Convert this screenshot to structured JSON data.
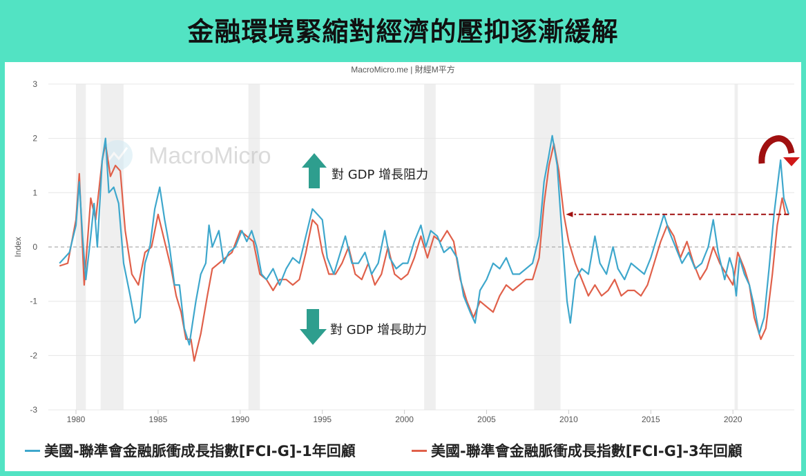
{
  "title": "金融環境緊縮對經濟的壓抑逐漸緩解",
  "source": "MacroMicro.me | 財經M平方",
  "watermark": "MacroMicro",
  "annotations": {
    "up": "對 GDP 增長阻力",
    "down": "對 GDP 增長助力"
  },
  "colors": {
    "background": "#52e3c3",
    "series1": "#3ea7cc",
    "series2": "#e0604a",
    "arrow": "#2e9e8e",
    "highlight": "#a01010"
  },
  "chart_data": {
    "type": "line",
    "ylabel": "Index",
    "ylim": [
      -3,
      3
    ],
    "xlim": [
      1978.5,
      2023.9
    ],
    "yticks": [
      "3",
      "2",
      "1",
      "0",
      "-1",
      "-2",
      "-3"
    ],
    "xticks": [
      "1980",
      "1985",
      "1990",
      "1995",
      "2000",
      "2005",
      "2010",
      "2015",
      "2020"
    ],
    "grid": true,
    "legend": "bottom",
    "recessions": [
      [
        1980.0,
        1980.6
      ],
      [
        1981.5,
        1982.9
      ],
      [
        1990.5,
        1991.2
      ],
      [
        2001.2,
        2001.9
      ],
      [
        2007.9,
        2009.5
      ],
      [
        2020.1,
        2020.3
      ]
    ],
    "reference_level": 0.6,
    "series": [
      {
        "name": "美國-聯準會金融脈衝成長指數[FCI-G]-1年回顧",
        "color": "#3ea7cc",
        "points": [
          [
            1979.0,
            -0.3
          ],
          [
            1979.3,
            -0.2
          ],
          [
            1979.6,
            -0.1
          ],
          [
            1980.0,
            0.4
          ],
          [
            1980.2,
            1.2
          ],
          [
            1980.4,
            0.2
          ],
          [
            1980.6,
            -0.6
          ],
          [
            1980.9,
            0.2
          ],
          [
            1981.1,
            0.8
          ],
          [
            1981.3,
            0.0
          ],
          [
            1981.6,
            1.6
          ],
          [
            1981.8,
            2.0
          ],
          [
            1982.0,
            1.0
          ],
          [
            1982.3,
            1.1
          ],
          [
            1982.6,
            0.8
          ],
          [
            1982.9,
            -0.3
          ],
          [
            1983.3,
            -0.9
          ],
          [
            1983.6,
            -1.4
          ],
          [
            1983.9,
            -1.3
          ],
          [
            1984.2,
            -0.3
          ],
          [
            1984.5,
            0.0
          ],
          [
            1984.8,
            0.7
          ],
          [
            1985.1,
            1.1
          ],
          [
            1985.4,
            0.5
          ],
          [
            1985.7,
            0.0
          ],
          [
            1986.0,
            -0.7
          ],
          [
            1986.3,
            -0.7
          ],
          [
            1986.6,
            -1.5
          ],
          [
            1986.9,
            -1.8
          ],
          [
            1987.1,
            -1.4
          ],
          [
            1987.3,
            -1.0
          ],
          [
            1987.6,
            -0.5
          ],
          [
            1987.9,
            -0.3
          ],
          [
            1988.1,
            0.4
          ],
          [
            1988.3,
            0.0
          ],
          [
            1988.7,
            0.3
          ],
          [
            1989.0,
            -0.3
          ],
          [
            1989.3,
            -0.1
          ],
          [
            1989.7,
            0.0
          ],
          [
            1990.1,
            0.3
          ],
          [
            1990.4,
            0.1
          ],
          [
            1990.7,
            0.3
          ],
          [
            1991.0,
            0.0
          ],
          [
            1991.3,
            -0.5
          ],
          [
            1991.6,
            -0.6
          ],
          [
            1992.0,
            -0.4
          ],
          [
            1992.4,
            -0.7
          ],
          [
            1992.8,
            -0.4
          ],
          [
            1993.2,
            -0.2
          ],
          [
            1993.6,
            -0.3
          ],
          [
            1994.0,
            0.2
          ],
          [
            1994.4,
            0.7
          ],
          [
            1994.7,
            0.6
          ],
          [
            1995.0,
            0.5
          ],
          [
            1995.3,
            -0.2
          ],
          [
            1995.7,
            -0.5
          ],
          [
            1996.0,
            -0.2
          ],
          [
            1996.4,
            0.2
          ],
          [
            1996.8,
            -0.3
          ],
          [
            1997.2,
            -0.3
          ],
          [
            1997.6,
            -0.1
          ],
          [
            1998.0,
            -0.5
          ],
          [
            1998.4,
            -0.3
          ],
          [
            1998.8,
            0.3
          ],
          [
            1999.1,
            -0.2
          ],
          [
            1999.5,
            -0.4
          ],
          [
            1999.9,
            -0.3
          ],
          [
            2000.2,
            -0.3
          ],
          [
            2000.6,
            0.1
          ],
          [
            2001.0,
            0.4
          ],
          [
            2001.3,
            0.0
          ],
          [
            2001.6,
            0.3
          ],
          [
            2002.0,
            0.2
          ],
          [
            2002.4,
            -0.1
          ],
          [
            2002.8,
            0.0
          ],
          [
            2003.2,
            -0.2
          ],
          [
            2003.6,
            -0.9
          ],
          [
            2004.0,
            -1.2
          ],
          [
            2004.3,
            -1.4
          ],
          [
            2004.6,
            -0.8
          ],
          [
            2005.0,
            -0.6
          ],
          [
            2005.4,
            -0.3
          ],
          [
            2005.8,
            -0.4
          ],
          [
            2006.2,
            -0.2
          ],
          [
            2006.6,
            -0.5
          ],
          [
            2007.0,
            -0.5
          ],
          [
            2007.4,
            -0.4
          ],
          [
            2007.8,
            -0.3
          ],
          [
            2008.2,
            0.2
          ],
          [
            2008.5,
            1.2
          ],
          [
            2008.8,
            1.7
          ],
          [
            2009.0,
            2.05
          ],
          [
            2009.3,
            1.5
          ],
          [
            2009.6,
            0.2
          ],
          [
            2009.9,
            -1.0
          ],
          [
            2010.1,
            -1.4
          ],
          [
            2010.4,
            -0.6
          ],
          [
            2010.8,
            -0.4
          ],
          [
            2011.2,
            -0.5
          ],
          [
            2011.6,
            0.2
          ],
          [
            2011.9,
            -0.3
          ],
          [
            2012.3,
            -0.5
          ],
          [
            2012.7,
            0.0
          ],
          [
            2013.0,
            -0.4
          ],
          [
            2013.4,
            -0.6
          ],
          [
            2013.8,
            -0.3
          ],
          [
            2014.2,
            -0.4
          ],
          [
            2014.6,
            -0.5
          ],
          [
            2015.0,
            -0.2
          ],
          [
            2015.4,
            0.2
          ],
          [
            2015.8,
            0.6
          ],
          [
            2016.1,
            0.3
          ],
          [
            2016.5,
            0.0
          ],
          [
            2016.9,
            -0.3
          ],
          [
            2017.3,
            -0.1
          ],
          [
            2017.7,
            -0.4
          ],
          [
            2018.1,
            -0.3
          ],
          [
            2018.5,
            0.0
          ],
          [
            2018.8,
            0.5
          ],
          [
            2019.1,
            -0.1
          ],
          [
            2019.5,
            -0.6
          ],
          [
            2019.8,
            -0.2
          ],
          [
            2020.0,
            -0.4
          ],
          [
            2020.2,
            -0.9
          ],
          [
            2020.4,
            -0.2
          ],
          [
            2020.7,
            -0.5
          ],
          [
            2021.0,
            -0.7
          ],
          [
            2021.3,
            -1.1
          ],
          [
            2021.6,
            -1.6
          ],
          [
            2021.9,
            -1.3
          ],
          [
            2022.2,
            -0.4
          ],
          [
            2022.5,
            0.6
          ],
          [
            2022.7,
            1.1
          ],
          [
            2022.9,
            1.6
          ],
          [
            2023.1,
            0.9
          ],
          [
            2023.4,
            0.6
          ]
        ]
      },
      {
        "name": "美國-聯準會金融脈衝成長指數[FCI-G]-3年回顧",
        "color": "#e0604a",
        "points": [
          [
            1979.0,
            -0.35
          ],
          [
            1979.5,
            -0.3
          ],
          [
            1980.0,
            0.5
          ],
          [
            1980.2,
            1.35
          ],
          [
            1980.5,
            -0.7
          ],
          [
            1980.9,
            0.9
          ],
          [
            1981.2,
            0.5
          ],
          [
            1981.6,
            1.6
          ],
          [
            1981.8,
            1.9
          ],
          [
            1982.1,
            1.3
          ],
          [
            1982.4,
            1.5
          ],
          [
            1982.7,
            1.4
          ],
          [
            1983.0,
            0.3
          ],
          [
            1983.4,
            -0.5
          ],
          [
            1983.8,
            -0.7
          ],
          [
            1984.2,
            -0.1
          ],
          [
            1984.6,
            0.0
          ],
          [
            1985.0,
            0.6
          ],
          [
            1985.4,
            0.1
          ],
          [
            1985.8,
            -0.4
          ],
          [
            1986.1,
            -0.9
          ],
          [
            1986.4,
            -1.2
          ],
          [
            1986.7,
            -1.7
          ],
          [
            1987.0,
            -1.7
          ],
          [
            1987.2,
            -2.1
          ],
          [
            1987.6,
            -1.6
          ],
          [
            1988.0,
            -0.9
          ],
          [
            1988.3,
            -0.4
          ],
          [
            1988.7,
            -0.3
          ],
          [
            1989.1,
            -0.2
          ],
          [
            1989.5,
            -0.1
          ],
          [
            1990.0,
            0.3
          ],
          [
            1990.4,
            0.2
          ],
          [
            1990.8,
            0.1
          ],
          [
            1991.2,
            -0.5
          ],
          [
            1991.6,
            -0.6
          ],
          [
            1992.0,
            -0.8
          ],
          [
            1992.4,
            -0.6
          ],
          [
            1992.8,
            -0.6
          ],
          [
            1993.2,
            -0.7
          ],
          [
            1993.6,
            -0.6
          ],
          [
            1994.0,
            -0.1
          ],
          [
            1994.4,
            0.5
          ],
          [
            1994.7,
            0.4
          ],
          [
            1995.0,
            -0.1
          ],
          [
            1995.4,
            -0.5
          ],
          [
            1995.8,
            -0.5
          ],
          [
            1996.2,
            -0.3
          ],
          [
            1996.6,
            0.0
          ],
          [
            1997.0,
            -0.5
          ],
          [
            1997.4,
            -0.6
          ],
          [
            1997.8,
            -0.3
          ],
          [
            1998.2,
            -0.7
          ],
          [
            1998.6,
            -0.5
          ],
          [
            1999.0,
            0.0
          ],
          [
            1999.4,
            -0.5
          ],
          [
            1999.8,
            -0.6
          ],
          [
            2000.2,
            -0.5
          ],
          [
            2000.6,
            -0.2
          ],
          [
            2001.0,
            0.2
          ],
          [
            2001.4,
            -0.2
          ],
          [
            2001.8,
            0.2
          ],
          [
            2002.2,
            0.1
          ],
          [
            2002.6,
            0.3
          ],
          [
            2003.0,
            0.1
          ],
          [
            2003.4,
            -0.6
          ],
          [
            2003.8,
            -1.0
          ],
          [
            2004.2,
            -1.3
          ],
          [
            2004.6,
            -1.0
          ],
          [
            2005.0,
            -1.1
          ],
          [
            2005.4,
            -1.2
          ],
          [
            2005.8,
            -0.9
          ],
          [
            2006.2,
            -0.7
          ],
          [
            2006.6,
            -0.8
          ],
          [
            2007.0,
            -0.7
          ],
          [
            2007.4,
            -0.6
          ],
          [
            2007.8,
            -0.6
          ],
          [
            2008.2,
            -0.2
          ],
          [
            2008.5,
            0.8
          ],
          [
            2008.8,
            1.5
          ],
          [
            2009.1,
            1.9
          ],
          [
            2009.4,
            1.4
          ],
          [
            2009.7,
            0.6
          ],
          [
            2010.0,
            0.1
          ],
          [
            2010.4,
            -0.3
          ],
          [
            2010.8,
            -0.6
          ],
          [
            2011.2,
            -0.9
          ],
          [
            2011.6,
            -0.7
          ],
          [
            2012.0,
            -0.9
          ],
          [
            2012.4,
            -0.8
          ],
          [
            2012.8,
            -0.6
          ],
          [
            2013.2,
            -0.9
          ],
          [
            2013.6,
            -0.8
          ],
          [
            2014.0,
            -0.8
          ],
          [
            2014.4,
            -0.9
          ],
          [
            2014.8,
            -0.7
          ],
          [
            2015.2,
            -0.3
          ],
          [
            2015.6,
            0.1
          ],
          [
            2016.0,
            0.4
          ],
          [
            2016.4,
            0.2
          ],
          [
            2016.8,
            -0.2
          ],
          [
            2017.2,
            0.1
          ],
          [
            2017.6,
            -0.3
          ],
          [
            2018.0,
            -0.6
          ],
          [
            2018.4,
            -0.4
          ],
          [
            2018.8,
            0.0
          ],
          [
            2019.2,
            -0.3
          ],
          [
            2019.6,
            -0.5
          ],
          [
            2020.0,
            -0.7
          ],
          [
            2020.3,
            -0.1
          ],
          [
            2020.7,
            -0.4
          ],
          [
            2021.0,
            -0.7
          ],
          [
            2021.3,
            -1.3
          ],
          [
            2021.7,
            -1.7
          ],
          [
            2022.0,
            -1.5
          ],
          [
            2022.4,
            -0.5
          ],
          [
            2022.7,
            0.4
          ],
          [
            2023.0,
            0.9
          ],
          [
            2023.2,
            0.6
          ],
          [
            2023.4,
            0.6
          ]
        ]
      }
    ]
  }
}
